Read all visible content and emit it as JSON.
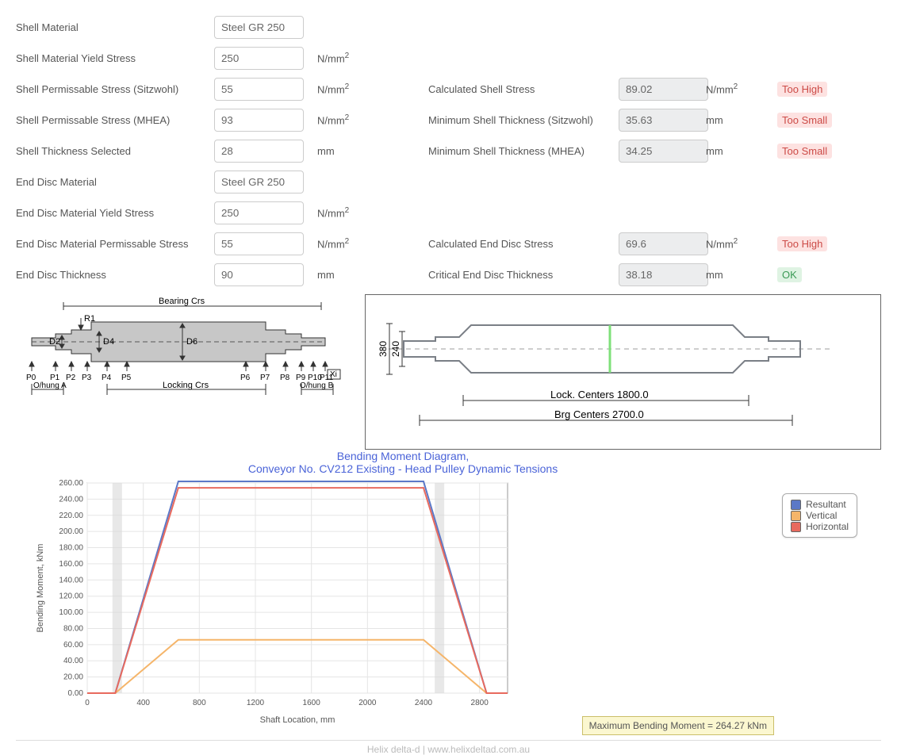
{
  "form": {
    "shell_material_lbl": "Shell Material",
    "shell_material_val": "Steel GR 250",
    "shell_yield_lbl": "Shell Material Yield Stress",
    "shell_yield_val": "250",
    "shell_perm_sitz_lbl": "Shell Permissable Stress (Sitzwohl)",
    "shell_perm_sitz_val": "55",
    "shell_perm_mhea_lbl": "Shell Permissable Stress (MHEA)",
    "shell_perm_mhea_val": "93",
    "shell_thick_lbl": "Shell Thickness Selected",
    "shell_thick_val": "28",
    "end_mat_lbl": "End Disc Material",
    "end_mat_val": "Steel GR 250",
    "end_yield_lbl": "End Disc Material Yield Stress",
    "end_yield_val": "250",
    "end_perm_lbl": "End Disc Material Permissable Stress",
    "end_perm_val": "55",
    "end_thick_lbl": "End Disc Thickness",
    "end_thick_val": "90",
    "unit_stress": "N/mm",
    "unit_mm": "mm"
  },
  "results": {
    "calc_shell_lbl": "Calculated Shell Stress",
    "calc_shell_val": "89.02",
    "calc_shell_status": "Too High",
    "min_shell_sitz_lbl": "Minimum Shell Thickness (Sitzwohl)",
    "min_shell_sitz_val": "35.63",
    "min_shell_sitz_status": "Too Small",
    "min_shell_mhea_lbl": "Minimum Shell Thickness (MHEA)",
    "min_shell_mhea_val": "34.25",
    "min_shell_mhea_status": "Too Small",
    "calc_end_lbl": "Calculated End Disc Stress",
    "calc_end_val": "69.6",
    "calc_end_status": "Too High",
    "crit_end_lbl": "Critical End Disc Thickness",
    "crit_end_val": "38.18",
    "crit_end_status": "OK"
  },
  "shaft_labels": {
    "bearing_crs": "Bearing Crs",
    "locking_crs": "Locking Crs",
    "ohung_a": "O/hung A",
    "ohung_b": "O/hung B",
    "R1": "R1",
    "D2": "D2",
    "D4": "D4",
    "D6": "D6",
    "Xi": "Xi",
    "P": [
      "P0",
      "P1",
      "P2",
      "P3",
      "P4",
      "P5",
      "P6",
      "P7",
      "P8",
      "P9",
      "P10",
      "P11"
    ]
  },
  "pulley_diagram": {
    "dim_380": "380",
    "dim_240": "240",
    "lock_centers": "Lock. Centers 1800.0",
    "brg_centers": "Brg Centers 2700.0",
    "outline_color": "#7a7f86",
    "centerline_color": "#bdbdbd",
    "highlight_color": "#7fe07a"
  },
  "chart": {
    "title1": "Bending Moment Diagram,",
    "title2": "Conveyor No. CV212 Existing - Head Pulley Dynamic Tensions",
    "xlabel": "Shaft Location, mm",
    "ylabel": "Bending Moment, kNm",
    "xlim": [
      0,
      3000
    ],
    "ylim": [
      0,
      260
    ],
    "xtick_step": 400,
    "ytick_step": 20,
    "grid_color": "#e5e5e5",
    "axis_color": "#666",
    "plot_bg": "#ffffff",
    "series": [
      {
        "name": "Resultant",
        "color": "#5b78c7",
        "data": [
          [
            0,
            0
          ],
          [
            200,
            0
          ],
          [
            650,
            262
          ],
          [
            2400,
            262
          ],
          [
            2850,
            0
          ],
          [
            3000,
            0
          ]
        ]
      },
      {
        "name": "Vertical",
        "color": "#f5b56a",
        "data": [
          [
            0,
            0
          ],
          [
            200,
            0
          ],
          [
            650,
            66
          ],
          [
            2400,
            66
          ],
          [
            2850,
            0
          ],
          [
            3000,
            0
          ]
        ]
      },
      {
        "name": "Horizontal",
        "color": "#e86a5e",
        "data": [
          [
            0,
            0
          ],
          [
            200,
            0
          ],
          [
            650,
            254
          ],
          [
            2400,
            254
          ],
          [
            2850,
            0
          ],
          [
            3000,
            0
          ]
        ]
      }
    ],
    "legend": [
      "Resultant",
      "Vertical",
      "Horizontal"
    ],
    "legend_colors": [
      "#5b78c7",
      "#f5b56a",
      "#e86a5e"
    ],
    "tooltip": "Maximum Bending Moment = 264.27 kNm",
    "vbar_color": "#d9d9d9"
  },
  "footer": "Helix delta-d   |   www.helixdeltad.com.au"
}
